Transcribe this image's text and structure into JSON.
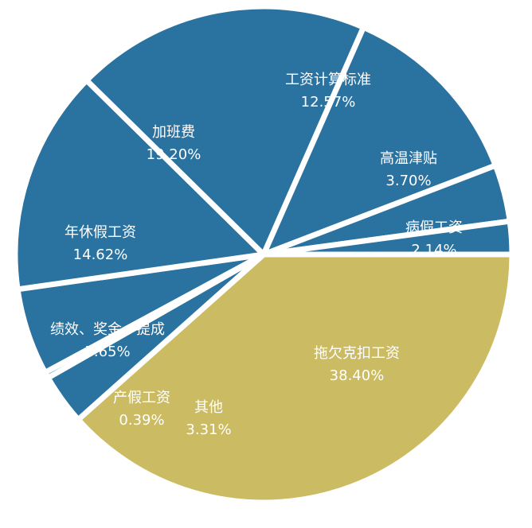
{
  "chart_data": {
    "type": "pie",
    "title": "",
    "colors": {
      "blue": "#2a72a0",
      "gold": "#cbbb63",
      "separator": "#ffffff",
      "label": "#ffffff"
    },
    "slices": [
      {
        "name": "拖欠克扣工资",
        "value": 38.4,
        "label": "38.40%",
        "color": "#cbbb63"
      },
      {
        "name": "其他",
        "value": 3.31,
        "label": "3.31%",
        "color": "#2a72a0"
      },
      {
        "name": "产假工资",
        "value": 0.39,
        "label": "0.39%",
        "color": "#2a72a0"
      },
      {
        "name": "绩效、奖金、提成",
        "value": 5.65,
        "label": "5.65%",
        "color": "#2a72a0"
      },
      {
        "name": "年休假工资",
        "value": 14.62,
        "label": "14.62%",
        "color": "#2a72a0"
      },
      {
        "name": "加班费",
        "value": 19.2,
        "label": "19.20%",
        "color": "#2a72a0"
      },
      {
        "name": "工资计算标准",
        "value": 12.57,
        "label": "12.57%",
        "color": "#2a72a0"
      },
      {
        "name": "高温津贴",
        "value": 3.7,
        "label": "3.70%",
        "color": "#2a72a0"
      },
      {
        "name": "病假工资",
        "value": 2.14,
        "label": "2.14%",
        "color": "#2a72a0"
      }
    ]
  }
}
